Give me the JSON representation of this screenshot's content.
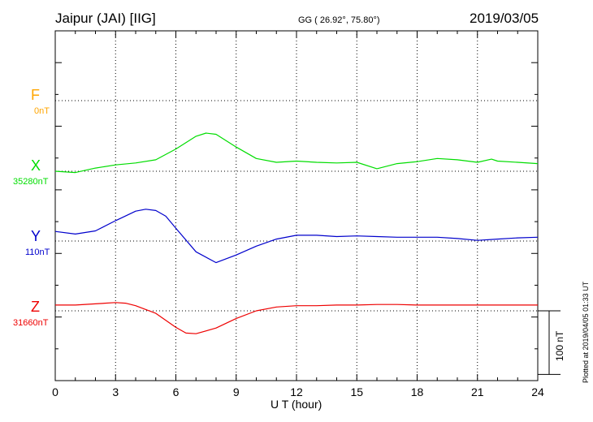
{
  "header": {
    "station": "Jaipur (JAI)  [IIG]",
    "coords": "GG ( 26.92°,  75.80°)",
    "date": "2019/03/05"
  },
  "plotted_note": "Plotted at 2019/04/05 01:33 UT",
  "scale_bar_label": "100 nT",
  "chart_data": {
    "type": "line",
    "xlabel": "U T (hour)",
    "x_ticks": [
      0,
      3,
      6,
      9,
      12,
      15,
      18,
      21,
      24
    ],
    "xlim": [
      0,
      24
    ],
    "y_unit": "nT",
    "y_span_nT": 550,
    "grid": true,
    "series": [
      {
        "name": "F",
        "baseline_label": "0nT",
        "color": "#ffa500",
        "x": [],
        "y": []
      },
      {
        "name": "X",
        "baseline_label": "35280nT",
        "color": "#00dd00",
        "x": [
          0,
          1,
          2,
          3,
          4,
          5,
          6,
          7,
          7.5,
          8,
          9,
          10,
          11,
          12,
          13,
          14,
          15,
          16,
          17,
          18,
          19,
          20,
          21,
          21.7,
          22,
          23,
          24
        ],
        "y": [
          35280,
          35278,
          35285,
          35290,
          35293,
          35298,
          35315,
          35335,
          35340,
          35338,
          35318,
          35300,
          35294,
          35296,
          35294,
          35293,
          35294,
          35284,
          35292,
          35295,
          35300,
          35298,
          35294,
          35299,
          35296,
          35294,
          35292
        ]
      },
      {
        "name": "Y",
        "baseline_label": "110nT",
        "color": "#0000cc",
        "x": [
          0,
          1,
          2,
          3,
          4,
          4.5,
          5,
          5.5,
          6,
          7,
          8,
          9,
          10,
          11,
          12,
          13,
          14,
          15,
          16,
          17,
          18,
          19,
          20,
          21,
          22,
          23,
          24
        ],
        "y": [
          125,
          121,
          126,
          142,
          157,
          160,
          158,
          149,
          130,
          93,
          76,
          88,
          102,
          113,
          119,
          119,
          117,
          118,
          117,
          116,
          116,
          116,
          114,
          111,
          113,
          115,
          116
        ]
      },
      {
        "name": "Z",
        "baseline_label": "31660nT",
        "color": "#ee0000",
        "x": [
          0,
          1,
          2,
          3,
          3.5,
          4,
          5,
          6,
          6.5,
          7,
          8,
          9,
          10,
          11,
          12,
          13,
          14,
          15,
          16,
          17,
          18,
          19,
          20,
          21,
          22,
          23,
          24
        ],
        "y": [
          31669,
          31669,
          31671,
          31673,
          31672,
          31668,
          31656,
          31634,
          31625,
          31624,
          31633,
          31648,
          31660,
          31666,
          31668,
          31668,
          31669,
          31669,
          31670,
          31670,
          31669,
          31669,
          31669,
          31669,
          31669,
          31669,
          31669
        ]
      }
    ]
  }
}
